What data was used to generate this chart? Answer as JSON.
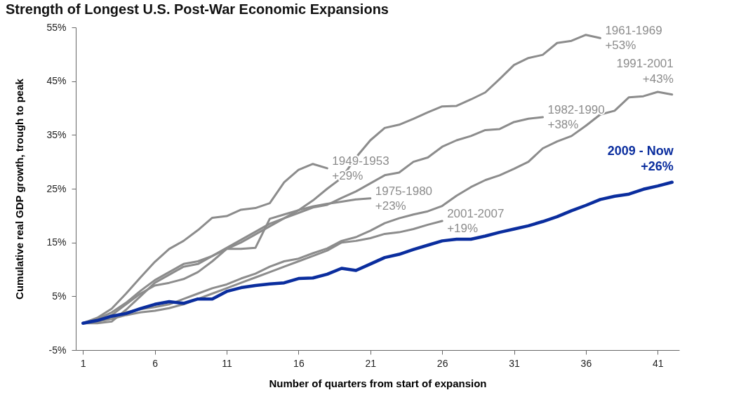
{
  "chart_data": {
    "type": "line",
    "title": "Strength of Longest U.S. Post-War Economic Expansions",
    "xlabel": "Number of quarters from start of expansion",
    "ylabel": "Cumulative real GDP growth, trough to peak",
    "xlim": [
      0.5,
      42.5
    ],
    "xticks": [
      1,
      6,
      11,
      16,
      21,
      26,
      31,
      36,
      41
    ],
    "ylim": [
      -5,
      55
    ],
    "yticks": [
      {
        "value": -5,
        "label": "-5%"
      },
      {
        "value": 5,
        "label": "5%"
      },
      {
        "value": 15,
        "label": "15%"
      },
      {
        "value": 25,
        "label": "25%"
      },
      {
        "value": 35,
        "label": "35%"
      },
      {
        "value": 45,
        "label": "45%"
      },
      {
        "value": 55,
        "label": "55%"
      }
    ],
    "grid": false,
    "marker": "none",
    "line_style": "solid",
    "series": [
      {
        "name": "1949-1953",
        "color": "#8c8c8c",
        "x": [
          1,
          2,
          3,
          4,
          5,
          6,
          7,
          8,
          9,
          10,
          11,
          12,
          13,
          14,
          15,
          16,
          17,
          18
        ],
        "values": [
          0,
          1.0,
          2.7,
          5.5,
          8.5,
          11.4,
          13.8,
          15.3,
          17.3,
          19.6,
          19.9,
          21.1,
          21.4,
          22.3,
          26.2,
          28.5,
          29.6,
          28.8
        ]
      },
      {
        "name": "1975-1980",
        "color": "#8c8c8c",
        "x": [
          1,
          2,
          3,
          4,
          5,
          6,
          7,
          8,
          9,
          10,
          11,
          12,
          13,
          14,
          15,
          16,
          17,
          18,
          19,
          20,
          21
        ],
        "values": [
          0,
          0.5,
          1.5,
          3.5,
          5.5,
          7.0,
          7.5,
          8.2,
          9.5,
          11.5,
          13.8,
          13.8,
          14.0,
          19.4,
          20.2,
          21.0,
          21.7,
          22.2,
          22.6,
          23.0,
          23.2
        ]
      },
      {
        "name": "2001-2007",
        "color": "#8c8c8c",
        "x": [
          1,
          2,
          3,
          4,
          5,
          6,
          7,
          8,
          9,
          10,
          11,
          12,
          13,
          14,
          15,
          16,
          17,
          18,
          19,
          20,
          21,
          22,
          23,
          24,
          25,
          26
        ],
        "values": [
          0,
          0.3,
          0.8,
          1.5,
          2.0,
          2.3,
          2.8,
          3.5,
          4.5,
          5.5,
          6.5,
          7.5,
          8.5,
          9.5,
          10.5,
          11.5,
          12.5,
          13.5,
          15.0,
          15.3,
          15.8,
          16.6,
          16.9,
          17.5,
          18.3,
          19.0
        ]
      },
      {
        "name": "1982-1990",
        "color": "#8c8c8c",
        "x": [
          1,
          2,
          3,
          4,
          5,
          6,
          7,
          8,
          9,
          10,
          11,
          12,
          13,
          14,
          15,
          16,
          17,
          18,
          19,
          20,
          21,
          22,
          23,
          24,
          25,
          26,
          27,
          28,
          29,
          30,
          31,
          32,
          33
        ],
        "values": [
          0,
          0.0,
          0.3,
          2.5,
          5.0,
          7.5,
          9.0,
          10.5,
          11.0,
          12.5,
          14.0,
          15.5,
          17.0,
          18.5,
          19.5,
          20.5,
          21.5,
          22.0,
          23.3,
          24.5,
          26.0,
          27.5,
          28.0,
          30.0,
          30.8,
          32.8,
          34.0,
          34.8,
          35.9,
          36.1,
          37.4,
          38.0,
          38.3
        ]
      },
      {
        "name": "1961-1969",
        "color": "#8c8c8c",
        "x": [
          1,
          2,
          3,
          4,
          5,
          6,
          7,
          8,
          9,
          10,
          11,
          12,
          13,
          14,
          15,
          16,
          17,
          18,
          19,
          20,
          21,
          22,
          23,
          24,
          25,
          26,
          27,
          28,
          29,
          30,
          31,
          32,
          33,
          34,
          35,
          36,
          37
        ],
        "values": [
          0,
          0.8,
          2.0,
          3.8,
          6.0,
          8.0,
          9.5,
          11.0,
          11.5,
          12.5,
          13.8,
          15.0,
          16.5,
          18.0,
          19.5,
          21.0,
          22.8,
          25.0,
          27.0,
          30.8,
          34.0,
          36.3,
          36.9,
          38.0,
          39.2,
          40.3,
          40.4,
          41.6,
          42.9,
          45.4,
          48.0,
          49.3,
          49.9,
          52.1,
          52.5,
          53.6,
          53.0
        ]
      },
      {
        "name": "1991-2001",
        "color": "#8c8c8c",
        "x": [
          1,
          2,
          3,
          4,
          5,
          6,
          7,
          8,
          9,
          10,
          11,
          12,
          13,
          14,
          15,
          16,
          17,
          18,
          19,
          20,
          21,
          22,
          23,
          24,
          25,
          26,
          27,
          28,
          29,
          30,
          31,
          32,
          33,
          34,
          35,
          36,
          37,
          38,
          39,
          40,
          41,
          42
        ],
        "values": [
          0,
          0.6,
          1.3,
          2.0,
          2.6,
          3.0,
          3.5,
          4.5,
          5.5,
          6.5,
          7.2,
          8.3,
          9.2,
          10.5,
          11.5,
          12.0,
          13.0,
          13.9,
          15.3,
          16.0,
          17.2,
          18.6,
          19.5,
          20.2,
          20.8,
          21.8,
          23.7,
          25.3,
          26.6,
          27.5,
          28.7,
          30.0,
          32.5,
          33.8,
          34.8,
          36.7,
          38.8,
          39.5,
          42.0,
          42.2,
          43.0,
          42.5
        ]
      },
      {
        "name": "2009 - Now",
        "color": "#0a2d9e",
        "x": [
          1,
          2,
          3,
          4,
          5,
          6,
          7,
          8,
          9,
          10,
          11,
          12,
          13,
          14,
          15,
          16,
          17,
          18,
          19,
          20,
          21,
          22,
          23,
          24,
          25,
          26,
          27,
          28,
          29,
          30,
          31,
          32,
          33,
          34,
          35,
          36,
          37,
          38,
          39,
          40,
          41,
          42
        ],
        "values": [
          0,
          0.5,
          1.3,
          1.8,
          2.7,
          3.5,
          4.0,
          3.7,
          4.5,
          4.5,
          5.9,
          6.6,
          7.0,
          7.3,
          7.5,
          8.3,
          8.4,
          9.1,
          10.2,
          9.8,
          11.0,
          12.2,
          12.8,
          13.7,
          14.5,
          15.3,
          15.6,
          15.6,
          16.2,
          16.9,
          17.5,
          18.1,
          18.9,
          19.8,
          20.9,
          21.9,
          23.0,
          23.6,
          24.0,
          24.9,
          25.5,
          26.2
        ]
      }
    ],
    "annotations": [
      "+29%",
      "+23%",
      "+19%",
      "+38%",
      "+53%",
      "+43%",
      "+26%"
    ]
  }
}
